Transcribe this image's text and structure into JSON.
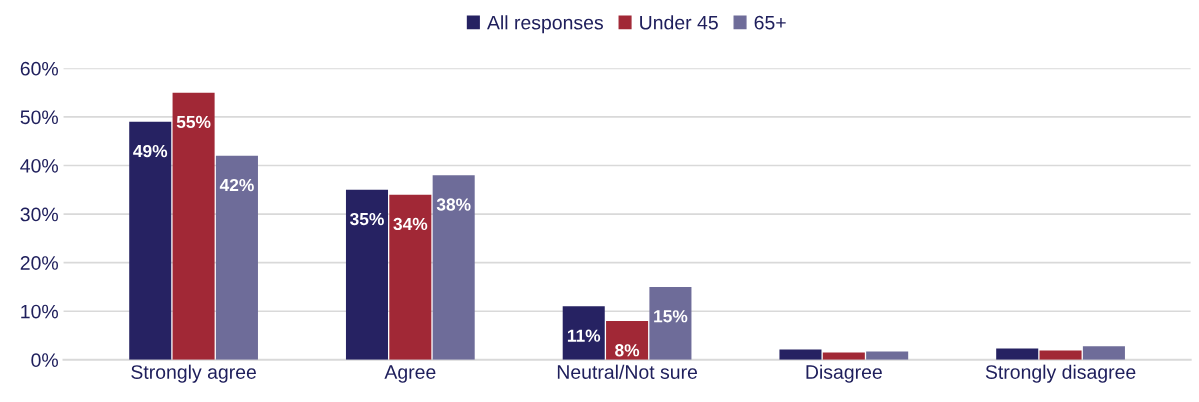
{
  "chart_data": {
    "type": "bar",
    "categories": [
      "Strongly agree",
      "Agree",
      "Neutral/Not sure",
      "Disagree",
      "Strongly disagree"
    ],
    "series": [
      {
        "name": "All responses",
        "color": "#262262",
        "values": [
          49,
          35,
          11,
          2.1,
          2.3
        ],
        "value_labels": [
          "49%",
          "35%",
          "11%",
          null,
          null
        ]
      },
      {
        "name": "Under 45",
        "color": "#a12836",
        "values": [
          55,
          34,
          8,
          1.5,
          1.9
        ],
        "value_labels": [
          "55%",
          "34%",
          "8%",
          null,
          null
        ]
      },
      {
        "name": "65+",
        "color": "#6e6c99",
        "values": [
          42,
          38,
          15,
          1.7,
          2.8
        ],
        "value_labels": [
          "42%",
          "38%",
          "15%",
          null,
          null
        ]
      }
    ],
    "ylim": [
      0,
      60
    ],
    "yticks": [
      {
        "value": 0,
        "label": "0%"
      },
      {
        "value": 10,
        "label": "10%"
      },
      {
        "value": 20,
        "label": "20%"
      },
      {
        "value": 30,
        "label": "30%"
      },
      {
        "value": 40,
        "label": "40%"
      },
      {
        "value": 50,
        "label": "50%"
      },
      {
        "value": 60,
        "label": "60%"
      }
    ],
    "grid": "y",
    "legend": "top"
  }
}
